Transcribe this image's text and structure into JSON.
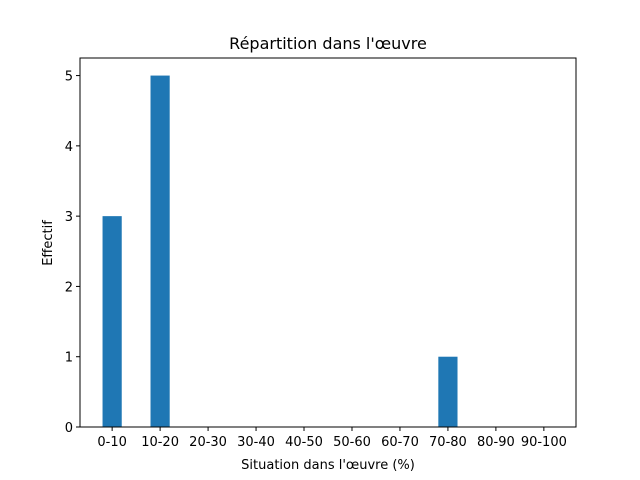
{
  "chart_data": {
    "type": "bar",
    "title": "Répartition dans l'œuvre",
    "xlabel": "Situation dans l'œuvre (%)",
    "ylabel": "Effectif",
    "categories": [
      "0-10",
      "10-20",
      "20-30",
      "30-40",
      "40-50",
      "50-60",
      "60-70",
      "70-80",
      "80-90",
      "90-100"
    ],
    "values": [
      3,
      5,
      0,
      0,
      0,
      0,
      0,
      1,
      0,
      0
    ],
    "color": "#1f77b4",
    "ylim": [
      0,
      5.25
    ],
    "yticks": [
      0,
      1,
      2,
      3,
      4,
      5
    ],
    "grid": false
  }
}
